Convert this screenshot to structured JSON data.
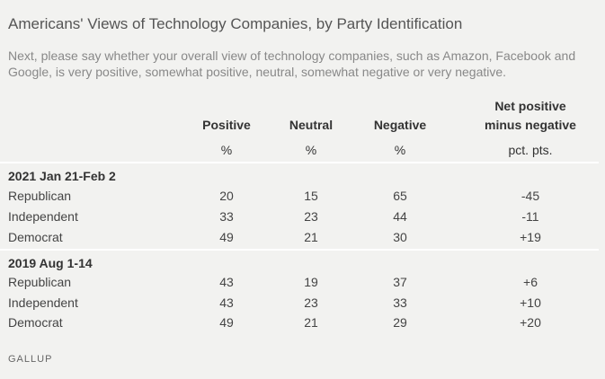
{
  "title": "Americans' Views of Technology Companies, by Party Identification",
  "subtitle": "Next, please say whether your overall view of technology companies, such as Amazon, Facebook and Google, is very positive, somewhat positive, neutral, somewhat negative or very negative.",
  "columns": [
    {
      "label": "Positive",
      "unit": "%"
    },
    {
      "label": "Neutral",
      "unit": "%"
    },
    {
      "label": "Negative",
      "unit": "%"
    },
    {
      "label_line1": "Net positive",
      "label_line2": "minus negative",
      "unit": "pct. pts."
    }
  ],
  "sections": [
    {
      "label": "2021 Jan 21-Feb 2",
      "rows": [
        {
          "group": "Republican",
          "positive": "20",
          "neutral": "15",
          "negative": "65",
          "net": "-45"
        },
        {
          "group": "Independent",
          "positive": "33",
          "neutral": "23",
          "negative": "44",
          "net": "-11"
        },
        {
          "group": "Democrat",
          "positive": "49",
          "neutral": "21",
          "negative": "30",
          "net": "+19"
        }
      ]
    },
    {
      "label": "2019 Aug 1-14",
      "rows": [
        {
          "group": "Republican",
          "positive": "43",
          "neutral": "19",
          "negative": "37",
          "net": "+6"
        },
        {
          "group": "Independent",
          "positive": "43",
          "neutral": "23",
          "negative": "33",
          "net": "+10"
        },
        {
          "group": "Democrat",
          "positive": "49",
          "neutral": "21",
          "negative": "29",
          "net": "+20"
        }
      ]
    }
  ],
  "source": "GALLUP"
}
